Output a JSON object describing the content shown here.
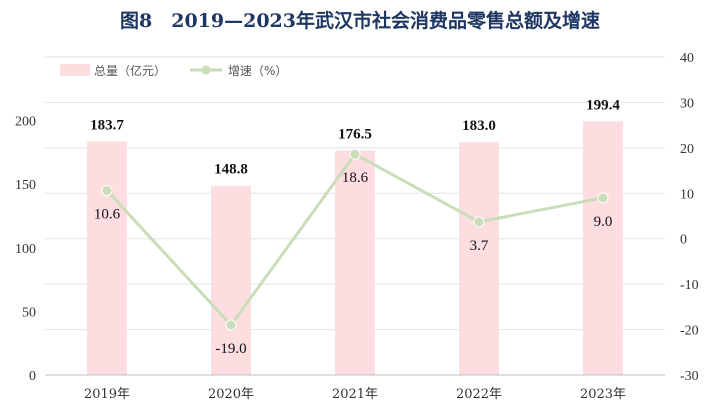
{
  "title": "图8　2019—2023年武汉市社会消费品零售总额及增速",
  "colors": {
    "bar": "#fddde0",
    "line": "#c9ddb9",
    "marker": "#c9ddb9",
    "title": "#1f3763",
    "grid": "#e3e3e3"
  },
  "chart_data": {
    "type": "bar+line",
    "categories": [
      "2019年",
      "2020年",
      "2021年",
      "2022年",
      "2023年"
    ],
    "series": [
      {
        "name": "总量（亿元）",
        "type": "bar",
        "axis": "left",
        "values": [
          183.7,
          148.8,
          176.5,
          183.0,
          199.4
        ],
        "labels": [
          "183.7",
          "148.8",
          "176.5",
          "183.0",
          "199.4"
        ]
      },
      {
        "name": "增速（%）",
        "type": "line",
        "axis": "right",
        "values": [
          10.6,
          -19.0,
          18.6,
          3.7,
          9.0
        ],
        "labels": [
          "10.6",
          "-19.0",
          "18.6",
          "3.7",
          "9.0"
        ]
      }
    ],
    "left_axis": {
      "ylim": [
        0,
        250
      ],
      "ticks": [
        "0",
        "50",
        "100",
        "150",
        "200"
      ]
    },
    "right_axis": {
      "ylim": [
        -30,
        40
      ],
      "ticks": [
        "-30",
        "-20",
        "-10",
        "0",
        "10",
        "20",
        "30",
        "40"
      ]
    },
    "grid": true,
    "legend_position": "top-left"
  }
}
